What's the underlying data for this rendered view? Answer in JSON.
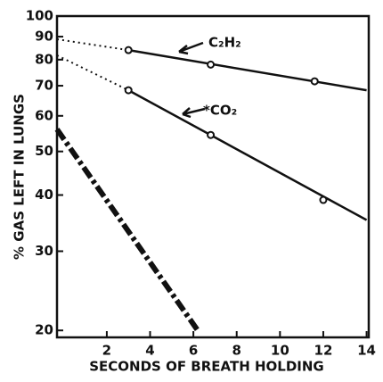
{
  "chart_data": {
    "type": "line",
    "x_label": "SECONDS OF BREATH HOLDING",
    "y_label": "% GAS LEFT IN LUNGS",
    "log_y": true,
    "xlim": [
      -0.3,
      14.1
    ],
    "ylim": [
      19.3,
      100
    ],
    "xticks": [
      2,
      4,
      6,
      8,
      10,
      12,
      14
    ],
    "yticks": [
      20,
      30,
      40,
      50,
      60,
      70,
      80,
      90,
      100
    ],
    "color": "#111111",
    "series": [
      {
        "name": "C₂H₂",
        "x": [
          3,
          6.8,
          11.6
        ],
        "values": [
          84,
          78,
          71.6
        ],
        "line_x": [
          3,
          14
        ],
        "line_values": [
          84,
          68.4
        ],
        "dotted_x": [
          -0.3,
          3
        ],
        "dotted_values": [
          88.8,
          84
        ]
      },
      {
        "name": "*CO₂",
        "x": [
          3,
          6.8,
          12
        ],
        "values": [
          68.4,
          54.4,
          39
        ],
        "line_x": [
          3,
          14
        ],
        "line_values": [
          68.4,
          35.2
        ],
        "dotted_x": [
          -0.3,
          3
        ],
        "dotted_values": [
          81.8,
          68.4
        ]
      },
      {
        "style": "dashdot",
        "line_x": [
          -0.3,
          6.2
        ],
        "line_values": [
          56,
          20
        ]
      }
    ]
  }
}
